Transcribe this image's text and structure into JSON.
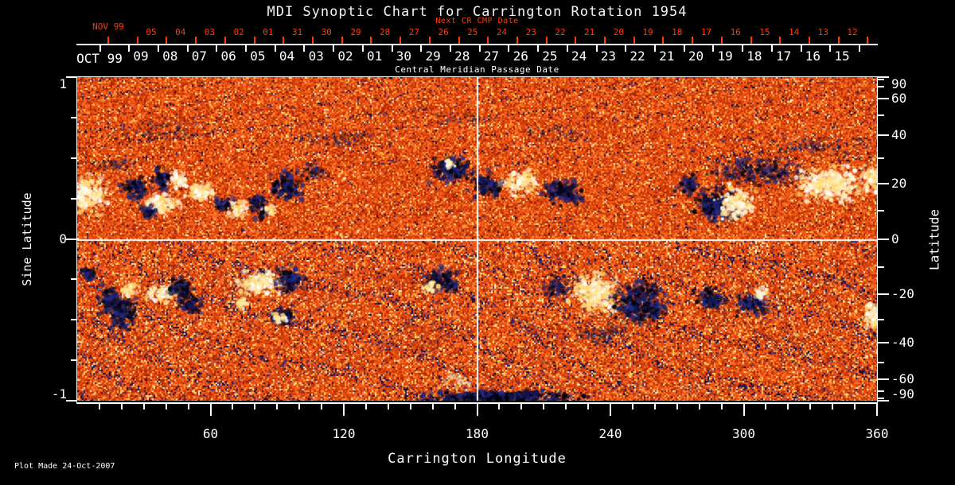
{
  "chart_data": {
    "type": "heatmap",
    "title": "MDI Synoptic Chart for Carrington Rotation 1954",
    "xlabel": "Carrington Longitude",
    "ylabel_left": "Sine Latitude",
    "ylabel_right": "Latitude",
    "xlim": [
      0,
      360
    ],
    "ylim_sine_latitude": [
      -1,
      1
    ],
    "x_major_ticks": [
      60,
      120,
      180,
      240,
      300,
      360
    ],
    "x_minor_tick_step_deg": 10,
    "y_left_major_ticks": [
      1,
      0,
      -1
    ],
    "y_left_minor_ticks": [
      0.75,
      0.5,
      0.25,
      -0.25,
      -0.5,
      -0.75
    ],
    "y_right_major_ticks_deg": [
      90,
      60,
      40,
      20,
      0,
      -20,
      -40,
      -60,
      -90
    ],
    "y_right_minor_ticks_deg": [
      80,
      70,
      50,
      30,
      10,
      -10,
      -30,
      -50,
      -70,
      -80
    ],
    "reference_lines": {
      "vertical_longitude_deg": 180,
      "horizontal_sine_latitude": 0,
      "color": "#ffffff"
    },
    "colormap": {
      "base_field": [
        "#a82300",
        "#c23304",
        "#d8420c",
        "#e84f13",
        "#f25a19",
        "#ff6c22",
        "#e0490f",
        "#cc3a07",
        "#f76421",
        "#ff9a3a"
      ],
      "bright_specks": [
        "#ffd14f",
        "#ffefb9"
      ],
      "dark_specks": [
        "#1d1d5e",
        "#2c2c86",
        "#0a0a30"
      ],
      "positive_polarity": [
        "#ffffff",
        "#fdf4d4",
        "#ffe896",
        "#ffd96a"
      ],
      "negative_polarity": [
        "#02021c",
        "#14144a",
        "#26266e",
        "#000000",
        "#1c2c8e"
      ]
    },
    "active_regions": [
      {
        "lon": 5,
        "slat": 0.28,
        "w": 18,
        "h": 0.25,
        "pol": "positive",
        "intensity": 1
      },
      {
        "lon": 26,
        "slat": 0.31,
        "w": 12,
        "h": 0.15,
        "pol": "negative",
        "intensity": 1
      },
      {
        "lon": 38,
        "slat": 0.36,
        "w": 9,
        "h": 0.15,
        "pol": "negative",
        "intensity": 1
      },
      {
        "lon": 46,
        "slat": 0.36,
        "w": 9,
        "h": 0.1,
        "pol": "positive",
        "intensity": 1
      },
      {
        "lon": 39,
        "slat": 0.22,
        "w": 15,
        "h": 0.12,
        "pol": "positive",
        "intensity": 1
      },
      {
        "lon": 32,
        "slat": 0.17,
        "w": 10,
        "h": 0.1,
        "pol": "negative",
        "intensity": 1
      },
      {
        "lon": 56,
        "slat": 0.29,
        "w": 13,
        "h": 0.13,
        "pol": "positive",
        "intensity": 1
      },
      {
        "lon": 67,
        "slat": 0.21,
        "w": 10,
        "h": 0.09,
        "pol": "negative",
        "intensity": 1
      },
      {
        "lon": 72,
        "slat": 0.18,
        "w": 10,
        "h": 0.1,
        "pol": "positive",
        "intensity": 1
      },
      {
        "lon": 82,
        "slat": 0.2,
        "w": 10,
        "h": 0.17,
        "pol": "negative",
        "intensity": 1
      },
      {
        "lon": 87,
        "slat": 0.18,
        "w": 7,
        "h": 0.07,
        "pol": "positive",
        "intensity": 1
      },
      {
        "lon": 95,
        "slat": 0.33,
        "w": 16,
        "h": 0.2,
        "pol": "negative",
        "intensity": 1
      },
      {
        "lon": 17,
        "slat": 0.45,
        "w": 22,
        "h": 0.09,
        "pol": "negative",
        "intensity": 0.5
      },
      {
        "lon": 107,
        "slat": 0.42,
        "w": 12,
        "h": 0.1,
        "pol": "negative",
        "intensity": 0.7
      },
      {
        "lon": 119,
        "slat": 0.62,
        "w": 40,
        "h": 0.12,
        "pol": "negative",
        "intensity": 0.4
      },
      {
        "lon": 37,
        "slat": 0.67,
        "w": 55,
        "h": 0.15,
        "pol": "negative",
        "intensity": 0.35
      },
      {
        "lon": 175,
        "slat": 0.74,
        "w": 30,
        "h": 0.1,
        "pol": "negative",
        "intensity": 0.35
      },
      {
        "lon": 216,
        "slat": 0.65,
        "w": 35,
        "h": 0.1,
        "pol": "negative",
        "intensity": 0.35
      },
      {
        "lon": 334,
        "slat": 0.57,
        "w": 50,
        "h": 0.15,
        "pol": "negative",
        "intensity": 0.4
      },
      {
        "lon": 169,
        "slat": 0.42,
        "w": 18,
        "h": 0.17,
        "pol": "negative",
        "intensity": 1
      },
      {
        "lon": 168,
        "slat": 0.46,
        "w": 6,
        "h": 0.06,
        "pol": "positive",
        "intensity": 1
      },
      {
        "lon": 184,
        "slat": 0.33,
        "w": 14,
        "h": 0.15,
        "pol": "negative",
        "intensity": 1
      },
      {
        "lon": 200,
        "slat": 0.35,
        "w": 16,
        "h": 0.15,
        "pol": "positive",
        "intensity": 1
      },
      {
        "lon": 218,
        "slat": 0.29,
        "w": 18,
        "h": 0.17,
        "pol": "negative",
        "intensity": 1
      },
      {
        "lon": 275,
        "slat": 0.33,
        "w": 11,
        "h": 0.12,
        "pol": "negative",
        "intensity": 1
      },
      {
        "lon": 287,
        "slat": 0.21,
        "w": 20,
        "h": 0.22,
        "pol": "negative",
        "intensity": 1
      },
      {
        "lon": 297,
        "slat": 0.22,
        "w": 16,
        "h": 0.2,
        "pol": "positive",
        "intensity": 1
      },
      {
        "lon": 306,
        "slat": 0.42,
        "w": 43,
        "h": 0.2,
        "pol": "negative",
        "intensity": 0.7
      },
      {
        "lon": 338,
        "slat": 0.34,
        "w": 32,
        "h": 0.22,
        "pol": "positive",
        "intensity": 1
      },
      {
        "lon": 359,
        "slat": 0.38,
        "w": 11,
        "h": 0.2,
        "pol": "positive",
        "intensity": 1
      },
      {
        "lon": 5,
        "slat": -0.22,
        "w": 7,
        "h": 0.1,
        "pol": "negative",
        "intensity": 1
      },
      {
        "lon": 15,
        "slat": -0.38,
        "w": 12,
        "h": 0.18,
        "pol": "negative",
        "intensity": 1
      },
      {
        "lon": 21,
        "slat": -0.47,
        "w": 14,
        "h": 0.2,
        "pol": "negative",
        "intensity": 1
      },
      {
        "lon": 24,
        "slat": -0.3,
        "w": 8,
        "h": 0.09,
        "pol": "positive",
        "intensity": 1
      },
      {
        "lon": 38,
        "slat": -0.33,
        "w": 14,
        "h": 0.12,
        "pol": "positive",
        "intensity": 1
      },
      {
        "lon": 47,
        "slat": -0.31,
        "w": 11,
        "h": 0.16,
        "pol": "negative",
        "intensity": 1
      },
      {
        "lon": 51,
        "slat": -0.42,
        "w": 10,
        "h": 0.1,
        "pol": "negative",
        "intensity": 1
      },
      {
        "lon": 74,
        "slat": -0.4,
        "w": 7,
        "h": 0.07,
        "pol": "positive",
        "intensity": 1
      },
      {
        "lon": 82,
        "slat": -0.27,
        "w": 19,
        "h": 0.17,
        "pol": "positive",
        "intensity": 1
      },
      {
        "lon": 96,
        "slat": -0.25,
        "w": 13,
        "h": 0.15,
        "pol": "negative",
        "intensity": 1
      },
      {
        "lon": 93,
        "slat": -0.47,
        "w": 12,
        "h": 0.12,
        "pol": "negative",
        "intensity": 1
      },
      {
        "lon": 91,
        "slat": -0.49,
        "w": 7,
        "h": 0.07,
        "pol": "positive",
        "intensity": 1
      },
      {
        "lon": 164,
        "slat": -0.26,
        "w": 16,
        "h": 0.15,
        "pol": "negative",
        "intensity": 1
      },
      {
        "lon": 159,
        "slat": -0.3,
        "w": 7,
        "h": 0.08,
        "pol": "positive",
        "intensity": 1
      },
      {
        "lon": 216,
        "slat": -0.3,
        "w": 14,
        "h": 0.15,
        "pol": "negative",
        "intensity": 0.8
      },
      {
        "lon": 233,
        "slat": -0.35,
        "w": 21,
        "h": 0.25,
        "pol": "positive",
        "intensity": 1
      },
      {
        "lon": 254,
        "slat": -0.4,
        "w": 25,
        "h": 0.27,
        "pol": "negative",
        "intensity": 1
      },
      {
        "lon": 237,
        "slat": -0.59,
        "w": 29,
        "h": 0.12,
        "pol": "negative",
        "intensity": 0.5
      },
      {
        "lon": 286,
        "slat": -0.37,
        "w": 13,
        "h": 0.14,
        "pol": "negative",
        "intensity": 1
      },
      {
        "lon": 304,
        "slat": -0.4,
        "w": 14,
        "h": 0.15,
        "pol": "negative",
        "intensity": 1
      },
      {
        "lon": 308,
        "slat": -0.33,
        "w": 7,
        "h": 0.08,
        "pol": "positive",
        "intensity": 1
      },
      {
        "lon": 358,
        "slat": -0.48,
        "w": 9,
        "h": 0.15,
        "pol": "positive",
        "intensity": 1
      },
      {
        "lon": 172,
        "slat": -0.88,
        "w": 18,
        "h": 0.1,
        "pol": "positive",
        "intensity": 0.5
      },
      {
        "lon": 190,
        "slat": -0.98,
        "w": 75,
        "h": 0.07,
        "pol": "negative",
        "intensity": 1.3
      }
    ]
  },
  "top_axis": {
    "next_cr_label": "Next CR CMP Date",
    "caption": "Central Meridian Passage Date",
    "next_cr_color": "#ff3c00",
    "next_cr_month": "NOV 99",
    "next_cr_days": [
      "05",
      "04",
      "03",
      "02",
      "01",
      "31",
      "30",
      "29",
      "28",
      "27",
      "26",
      "25",
      "24",
      "23",
      "22",
      "21",
      "20",
      "19",
      "18",
      "17",
      "16",
      "15",
      "14",
      "13",
      "12"
    ],
    "cmp_month": "OCT 99",
    "cmp_days": [
      "09",
      "08",
      "07",
      "06",
      "05",
      "04",
      "03",
      "02",
      "01",
      "30",
      "29",
      "28",
      "27",
      "26",
      "25",
      "24",
      "23",
      "22",
      "21",
      "20",
      "19",
      "18",
      "17",
      "16",
      "15"
    ]
  },
  "footer": {
    "plot_made": "Plot Made 24-Oct-2007"
  }
}
